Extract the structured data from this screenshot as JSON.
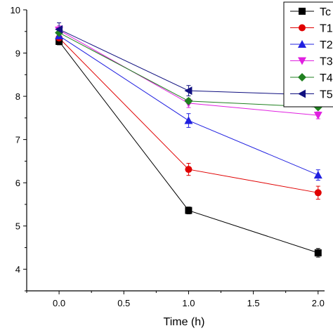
{
  "chart_data": {
    "type": "line",
    "title": "",
    "xlabel": "Time (h)",
    "ylabel": "",
    "xlim": [
      -0.25,
      2.05
    ],
    "ylim": [
      3.5,
      10.0
    ],
    "xticks": [
      0.0,
      0.5,
      1.0,
      1.5,
      2.0
    ],
    "xtick_labels": [
      "0.0",
      "0.5",
      "1.0",
      "1.5",
      "2.0"
    ],
    "yticks": [
      4,
      5,
      6,
      7,
      8,
      9,
      10
    ],
    "ytick_labels": [
      "4",
      "5",
      "6",
      "7",
      "8",
      "9",
      "10"
    ],
    "grid": false,
    "legend_position": "top-right",
    "x": [
      0.0,
      1.0,
      2.0
    ],
    "series": [
      {
        "name": "Tc",
        "color": "#000000",
        "marker": "square",
        "values": [
          9.27,
          5.36,
          4.38
        ],
        "errors": [
          0.08,
          0.08,
          0.1
        ]
      },
      {
        "name": "T1",
        "color": "#e00000",
        "marker": "circle",
        "values": [
          9.35,
          6.31,
          5.77
        ],
        "errors": [
          0.1,
          0.14,
          0.15
        ]
      },
      {
        "name": "T2",
        "color": "#2020e0",
        "marker": "triangle-up",
        "values": [
          9.4,
          7.44,
          6.18
        ],
        "errors": [
          0.12,
          0.16,
          0.12
        ]
      },
      {
        "name": "T3",
        "color": "#e020e0",
        "marker": "triangle-down",
        "values": [
          9.53,
          7.84,
          7.56
        ],
        "errors": [
          0.1,
          0.1,
          0.08
        ]
      },
      {
        "name": "T4",
        "color": "#208020",
        "marker": "diamond",
        "values": [
          9.47,
          7.89,
          7.75
        ],
        "errors": [
          0.08,
          0.06,
          0.05
        ]
      },
      {
        "name": "T5",
        "color": "#101080",
        "marker": "triangle-left",
        "values": [
          9.55,
          8.13,
          8.03
        ],
        "errors": [
          0.15,
          0.12,
          0.1
        ]
      }
    ]
  }
}
